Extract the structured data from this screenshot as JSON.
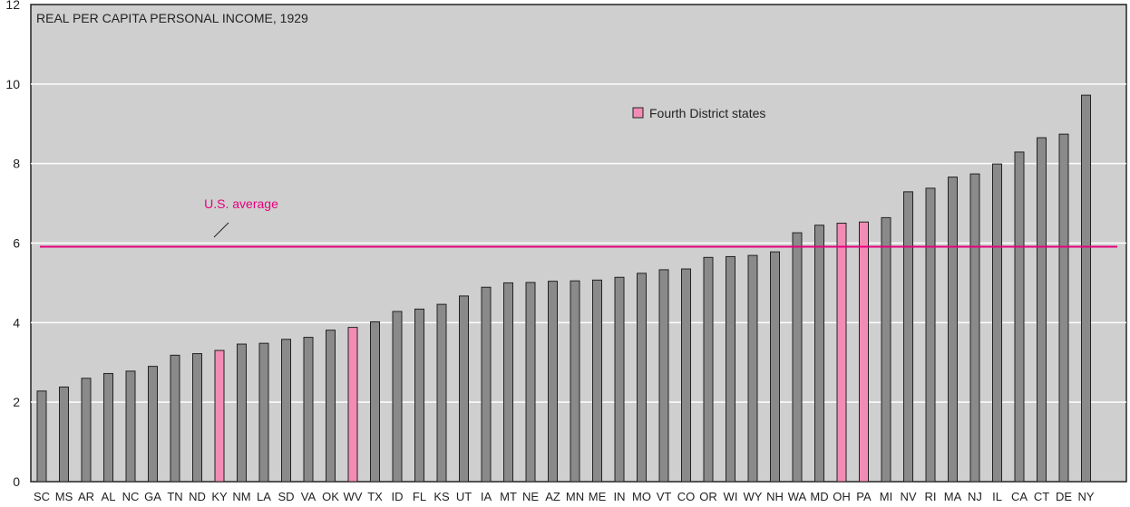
{
  "chart_data": {
    "type": "bar",
    "title": "REAL PER CAPITA PERSONAL INCOME, 1929",
    "xlabel": "",
    "ylabel": "",
    "ylim": [
      0,
      12
    ],
    "yticks": [
      0,
      2,
      4,
      6,
      8,
      10,
      12
    ],
    "grid": "horizontal",
    "legend": {
      "position": "top-center",
      "label": "Fourth District states",
      "color": "#f28cb4"
    },
    "colors": {
      "bar": "#8a8a8a",
      "highlight": "#f28cb4",
      "average_line": "#e6007e",
      "background": "#cfcfcf",
      "grid": "#ffffff"
    },
    "categories": [
      "SC",
      "MS",
      "AR",
      "AL",
      "NC",
      "GA",
      "TN",
      "ND",
      "KY",
      "NM",
      "LA",
      "SD",
      "VA",
      "OK",
      "WV",
      "TX",
      "ID",
      "FL",
      "KS",
      "UT",
      "IA",
      "MT",
      "NE",
      "AZ",
      "MN",
      "ME",
      "IN",
      "MO",
      "VT",
      "CO",
      "OR",
      "WI",
      "WY",
      "NH",
      "WA",
      "MD",
      "OH",
      "PA",
      "MI",
      "NV",
      "RI",
      "MA",
      "NJ",
      "IL",
      "CA",
      "CT",
      "DE",
      "NY"
    ],
    "values": [
      2.28,
      2.38,
      2.6,
      2.72,
      2.78,
      2.9,
      3.18,
      3.22,
      3.3,
      3.46,
      3.48,
      3.58,
      3.63,
      3.81,
      3.88,
      4.02,
      4.28,
      4.34,
      4.46,
      4.67,
      4.89,
      5.0,
      5.01,
      5.04,
      5.05,
      5.07,
      5.14,
      5.24,
      5.33,
      5.35,
      5.64,
      5.66,
      5.69,
      5.78,
      6.26,
      6.45,
      6.5,
      6.53,
      6.64,
      7.29,
      7.38,
      7.66,
      7.74,
      7.99,
      8.29,
      8.65,
      8.74,
      9.72
    ],
    "highlighted": [
      "KY",
      "WV",
      "OH",
      "PA"
    ],
    "reference_line": {
      "label": "U.S. average",
      "value": 5.91
    }
  }
}
